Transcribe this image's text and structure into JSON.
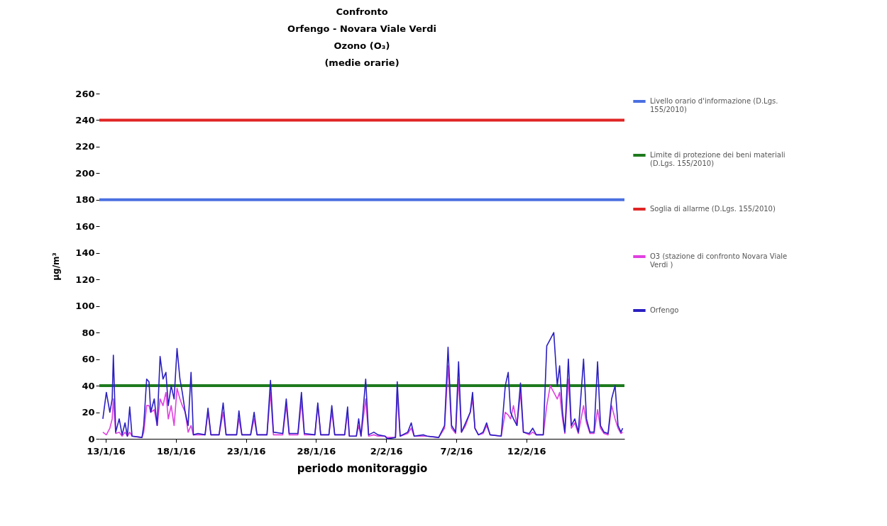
{
  "chart_data": {
    "type": "line",
    "title": "Confronto\nOrfengo - Novara Viale Verdi\nOzono (O₃)\n(medie orarie)",
    "xlabel": "periodo monitoraggio",
    "ylabel": "µg/m³",
    "x": [
      "--01-12T19:00",
      "--01-13T01:00",
      "--01-13T07:00",
      "--01-13T11:00",
      "--01-13T13:00",
      "--01-13T17:00",
      "--01-13T23:00",
      "--01-14T04:00",
      "--01-14T09:00",
      "--01-14T13:00",
      "--01-14T17:00",
      "--01-14T21:00",
      "--01-15T14:00",
      "--01-15T17:00",
      "--01-15T22:00",
      "--01-16T02:00",
      "--01-16T05:00",
      "--01-16T11:00",
      "--01-16T16:00",
      "--01-16T21:00",
      "--01-17T02:00",
      "--01-17T07:00",
      "--01-17T11:00",
      "--01-17T16:00",
      "--01-17T21:00",
      "--01-18T02:00",
      "--01-18T07:00",
      "--01-18T11:00",
      "--01-18T16:00",
      "--01-18T21:00",
      "--01-19T02:00",
      "--01-19T06:00",
      "--01-19T14:00",
      "--01-20T02:00",
      "--01-20T07:00",
      "--01-20T12:00",
      "--01-21T02:00",
      "--01-21T09:00",
      "--01-21T14:00",
      "--01-22T08:00",
      "--01-22T12:00",
      "--01-22T17:00",
      "--01-23T08:00",
      "--01-23T14:00",
      "--01-23T19:00",
      "--01-24T12:00",
      "--01-24T18:00",
      "--01-24T23:00",
      "--01-25T15:00",
      "--01-25T21:00",
      "--01-26T02:00",
      "--01-26T17:00",
      "--01-26T23:00",
      "--01-27T04:00",
      "--01-27T22:00",
      "--01-28T03:00",
      "--01-28T08:00",
      "--01-28T22:00",
      "--01-29T03:00",
      "--01-29T08:00",
      "--01-30T01:00",
      "--01-30T06:00",
      "--01-30T09:00",
      "--01-30T21:00",
      "--01-31T01:00",
      "--01-31T05:00",
      "--01-31T13:00",
      "--01-31T18:00",
      "--02-01T03:00",
      "--02-01T10:00",
      "--02-01T22:00",
      "--02-02T02:00",
      "--02-02T16:00",
      "--02-02T19:00",
      "--02-03T00:00",
      "--02-03T13:00",
      "--02-03T19:00",
      "--02-04T00:00",
      "--02-04T16:00",
      "--02-04T22:00",
      "--02-05T18:00",
      "--02-06T04:00",
      "--02-06T10:00",
      "--02-06T16:00",
      "--02-06T23:00",
      "--02-07T04:00",
      "--02-07T09:00",
      "--02-07T16:00",
      "--02-08T00:00",
      "--02-08T04:00",
      "--02-08T08:00",
      "--02-08T14:00",
      "--02-08T22:00",
      "--02-09T04:00",
      "--02-09T10:00",
      "--02-10T05:00",
      "--02-10T12:00",
      "--02-10T17:00",
      "--02-10T21:00",
      "--02-11T02:00",
      "--02-11T08:00",
      "--02-11T14:00",
      "--02-11T19:00",
      "--02-12T05:00",
      "--02-12T11:00",
      "--02-12T17:00",
      "--02-13T05:00",
      "--02-13T11:00",
      "--02-13T17:00",
      "--02-13T23:00",
      "--02-14T05:00",
      "--02-14T09:00",
      "--02-14T14:00",
      "--02-14T18:00",
      "--02-15T00:00",
      "--02-15T05:00",
      "--02-15T11:00",
      "--02-15T17:00",
      "--02-16T02:00",
      "--02-16T07:00",
      "--02-16T13:00",
      "--02-16T20:00",
      "--02-17T02:00",
      "--02-17T07:00",
      "--02-17T13:00",
      "--02-17T20:00",
      "--02-18T02:00",
      "--02-18T08:00",
      "--02-18T13:00",
      "--02-18T18:00",
      "--02-18T21:00"
    ],
    "series": [
      {
        "name": "O3  (stazione di confronto Novara Viale Verdi )",
        "color": "#e040e0",
        "values": [
          5,
          3,
          8,
          15,
          30,
          4,
          5,
          2,
          5,
          2,
          5,
          2,
          1,
          5,
          25,
          25,
          20,
          22,
          10,
          30,
          25,
          35,
          15,
          25,
          10,
          38,
          30,
          25,
          20,
          5,
          10,
          3,
          3,
          3,
          20,
          3,
          3,
          20,
          3,
          3,
          15,
          3,
          3,
          15,
          3,
          3,
          35,
          3,
          3,
          25,
          3,
          3,
          28,
          3,
          3,
          25,
          3,
          3,
          20,
          3,
          3,
          20,
          2,
          2,
          10,
          2,
          30,
          2,
          3,
          2,
          2,
          1,
          1,
          35,
          2,
          4,
          8,
          2,
          2,
          2,
          1,
          8,
          55,
          8,
          4,
          45,
          5,
          10,
          20,
          30,
          8,
          3,
          4,
          10,
          3,
          2,
          20,
          18,
          15,
          25,
          10,
          35,
          5,
          3,
          5,
          3,
          3,
          25,
          40,
          35,
          30,
          35,
          15,
          4,
          45,
          8,
          12,
          4,
          25,
          12,
          4,
          4,
          22,
          8,
          4,
          3,
          25,
          15,
          8,
          4,
          5
        ]
      },
      {
        "name": "Orfengo",
        "color": "#2a1fc0",
        "values": [
          15,
          35,
          20,
          30,
          63,
          5,
          15,
          3,
          12,
          2,
          24,
          2,
          1,
          10,
          45,
          43,
          20,
          30,
          10,
          62,
          45,
          50,
          25,
          40,
          30,
          68,
          45,
          35,
          20,
          10,
          50,
          3,
          4,
          3,
          23,
          3,
          3,
          27,
          3,
          3,
          21,
          3,
          3,
          20,
          3,
          3,
          44,
          5,
          4,
          30,
          4,
          4,
          35,
          4,
          3,
          27,
          3,
          3,
          25,
          3,
          3,
          24,
          2,
          2,
          15,
          2,
          45,
          3,
          5,
          3,
          2,
          0,
          1,
          43,
          2,
          5,
          12,
          2,
          3,
          2,
          1,
          10,
          69,
          10,
          5,
          58,
          5,
          12,
          20,
          35,
          8,
          3,
          5,
          12,
          3,
          2,
          40,
          50,
          20,
          15,
          10,
          42,
          5,
          4,
          8,
          3,
          3,
          70,
          75,
          80,
          40,
          55,
          20,
          5,
          60,
          10,
          15,
          5,
          60,
          15,
          5,
          5,
          58,
          10,
          5,
          4,
          30,
          40,
          10,
          5,
          8
        ]
      }
    ],
    "xlim": [
      "--01-12T13:00",
      "--02-19T00:00"
    ],
    "xticks": [
      {
        "value": "--01-13",
        "label": "13/1/16"
      },
      {
        "value": "--01-18",
        "label": "18/1/16"
      },
      {
        "value": "--01-23",
        "label": "23/1/16"
      },
      {
        "value": "--01-28",
        "label": "28/1/16"
      },
      {
        "value": "--02-02",
        "label": "2/2/16"
      },
      {
        "value": "--02-07",
        "label": "7/2/16"
      },
      {
        "value": "--02-12",
        "label": "12/2/16"
      }
    ],
    "ylim": [
      0,
      260
    ],
    "yticks": [
      0,
      20,
      40,
      60,
      80,
      100,
      120,
      140,
      160,
      180,
      200,
      220,
      240,
      260
    ],
    "ref_lines": [
      {
        "axis": "y",
        "value": 180,
        "label": "Livello orario d'informazione (D.Lgs. 155/2010)",
        "color": "#4a6fe0"
      },
      {
        "axis": "y",
        "value": 40,
        "label": "Limite di protezione dei beni materiali (D.Lgs. 155/2010)",
        "color": "#1e7a1e"
      },
      {
        "axis": "y",
        "value": 240,
        "label": "Soglia di allarme (D.Lgs. 155/2010)",
        "color": "#e02424"
      }
    ],
    "legend": "right",
    "grid": false
  }
}
